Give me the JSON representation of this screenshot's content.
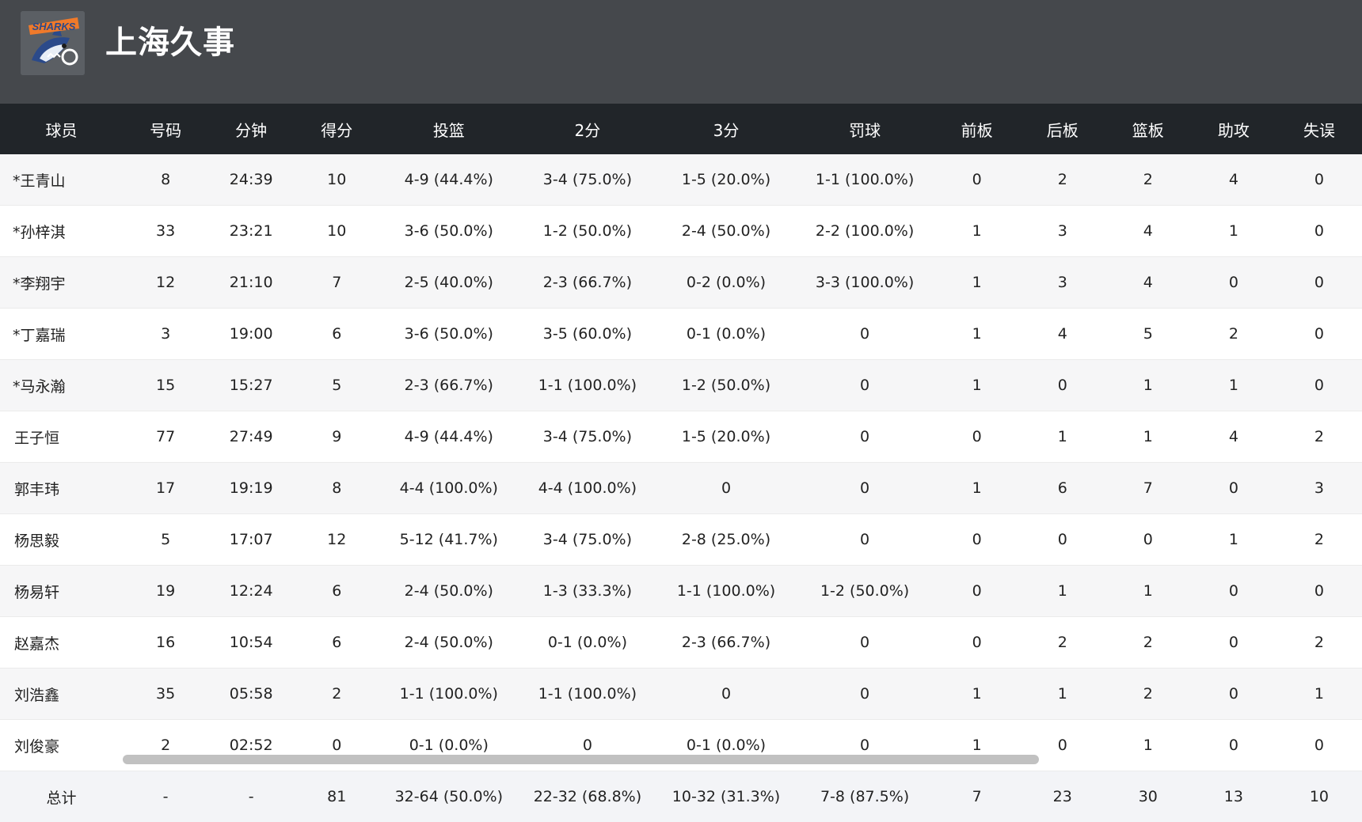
{
  "team": {
    "name": "上海久事",
    "logo_text": "SHARKS",
    "logo_icon": "shark-logo-icon"
  },
  "table": {
    "headers": [
      "球员",
      "号码",
      "分钟",
      "得分",
      "投篮",
      "2分",
      "3分",
      "罚球",
      "前板",
      "后板",
      "篮板",
      "助攻",
      "失误"
    ],
    "rows": [
      [
        "*王青山",
        "8",
        "24:39",
        "10",
        "4-9 (44.4%)",
        "3-4 (75.0%)",
        "1-5 (20.0%)",
        "1-1 (100.0%)",
        "0",
        "2",
        "2",
        "4",
        "0"
      ],
      [
        "*孙梓淇",
        "33",
        "23:21",
        "10",
        "3-6 (50.0%)",
        "1-2 (50.0%)",
        "2-4 (50.0%)",
        "2-2 (100.0%)",
        "1",
        "3",
        "4",
        "1",
        "0"
      ],
      [
        "*李翔宇",
        "12",
        "21:10",
        "7",
        "2-5 (40.0%)",
        "2-3 (66.7%)",
        "0-2 (0.0%)",
        "3-3 (100.0%)",
        "1",
        "3",
        "4",
        "0",
        "0"
      ],
      [
        "*丁嘉瑞",
        "3",
        "19:00",
        "6",
        "3-6 (50.0%)",
        "3-5 (60.0%)",
        "0-1 (0.0%)",
        "0",
        "1",
        "4",
        "5",
        "2",
        "0"
      ],
      [
        "*马永瀚",
        "15",
        "15:27",
        "5",
        "2-3 (66.7%)",
        "1-1 (100.0%)",
        "1-2 (50.0%)",
        "0",
        "1",
        "0",
        "1",
        "1",
        "0"
      ],
      [
        "王子恒",
        "77",
        "27:49",
        "9",
        "4-9 (44.4%)",
        "3-4 (75.0%)",
        "1-5 (20.0%)",
        "0",
        "0",
        "1",
        "1",
        "4",
        "2"
      ],
      [
        "郭丰玮",
        "17",
        "19:19",
        "8",
        "4-4 (100.0%)",
        "4-4 (100.0%)",
        "0",
        "0",
        "1",
        "6",
        "7",
        "0",
        "3"
      ],
      [
        "杨思毅",
        "5",
        "17:07",
        "12",
        "5-12 (41.7%)",
        "3-4 (75.0%)",
        "2-8 (25.0%)",
        "0",
        "0",
        "0",
        "0",
        "1",
        "2"
      ],
      [
        "杨易轩",
        "19",
        "12:24",
        "6",
        "2-4 (50.0%)",
        "1-3 (33.3%)",
        "1-1 (100.0%)",
        "1-2 (50.0%)",
        "0",
        "1",
        "1",
        "0",
        "0"
      ],
      [
        "赵嘉杰",
        "16",
        "10:54",
        "6",
        "2-4 (50.0%)",
        "0-1 (0.0%)",
        "2-3 (66.7%)",
        "0",
        "0",
        "2",
        "2",
        "0",
        "2"
      ],
      [
        "刘浩鑫",
        "35",
        "05:58",
        "2",
        "1-1 (100.0%)",
        "1-1 (100.0%)",
        "0",
        "0",
        "1",
        "1",
        "2",
        "0",
        "1"
      ],
      [
        "刘俊豪",
        "2",
        "02:52",
        "0",
        "0-1 (0.0%)",
        "0",
        "0-1 (0.0%)",
        "0",
        "1",
        "0",
        "1",
        "0",
        "0"
      ]
    ],
    "totals": [
      "总计",
      "-",
      "-",
      "81",
      "32-64 (50.0%)",
      "22-32 (68.8%)",
      "10-32 (31.3%)",
      "7-8 (87.5%)",
      "7",
      "23",
      "30",
      "13",
      "10"
    ]
  },
  "colors": {
    "header_bg": "#45484c",
    "table_header_bg": "#212529",
    "logo_orange": "#f07a2a",
    "logo_blue": "#2b4a8a"
  }
}
